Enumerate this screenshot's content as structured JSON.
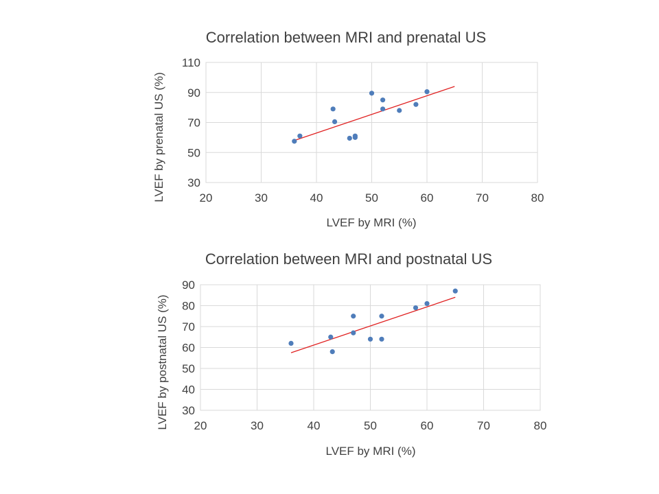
{
  "chart_data": [
    {
      "type": "scatter",
      "title": "Correlation between MRI and prenatal US",
      "xlabel": "LVEF  by MRI (%)",
      "ylabel": "LVEF  by prenatal US  (%)",
      "xlim": [
        20,
        80
      ],
      "ylim": [
        30,
        110
      ],
      "xticks": [
        "20",
        "30",
        "40",
        "50",
        "60",
        "70",
        "80"
      ],
      "yticks": [
        "30",
        "50",
        "70",
        "90",
        "110"
      ],
      "grid": true,
      "series": [
        {
          "name": "LVEF",
          "x": [
            36,
            37,
            43,
            43.3,
            46,
            47,
            47,
            50,
            52,
            52,
            55,
            58,
            60
          ],
          "y": [
            57.5,
            61,
            79,
            70.5,
            59.5,
            60,
            61,
            89.5,
            85,
            79,
            78,
            82,
            90.5
          ]
        }
      ],
      "trendline": {
        "x": [
          36,
          65
        ],
        "y": [
          58,
          94
        ]
      },
      "colors": {
        "points": "#4f7dba",
        "trendline": "#e02020",
        "grid": "#d9d9d9"
      }
    },
    {
      "type": "scatter",
      "title": "Correlation between MRI and postnatal US",
      "xlabel": "LVEF  by MRI (%)",
      "ylabel": "LVEF  by postnatal US  (%)",
      "xlim": [
        20,
        80
      ],
      "ylim": [
        30,
        90
      ],
      "xticks": [
        "20",
        "30",
        "40",
        "50",
        "60",
        "70",
        "80"
      ],
      "yticks": [
        "30",
        "40",
        "50",
        "60",
        "70",
        "80",
        "90"
      ],
      "grid": true,
      "series": [
        {
          "name": "LVEF",
          "x": [
            36,
            43,
            43.3,
            47,
            47,
            50,
            52,
            52,
            58,
            60,
            65
          ],
          "y": [
            62,
            65,
            58,
            75,
            67,
            64,
            75,
            64,
            79,
            81,
            87
          ]
        }
      ],
      "trendline": {
        "x": [
          36,
          65
        ],
        "y": [
          57.5,
          84
        ]
      },
      "colors": {
        "points": "#4f7dba",
        "trendline": "#e02020",
        "grid": "#d9d9d9"
      }
    }
  ]
}
